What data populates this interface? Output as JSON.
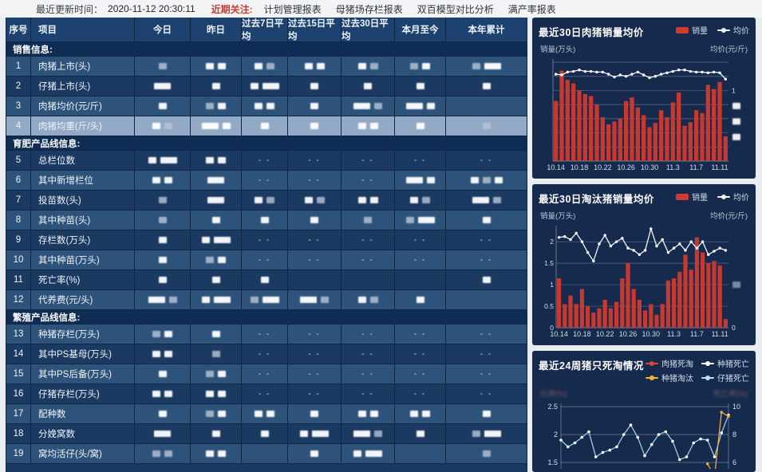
{
  "colors": {
    "bar_red": "#c7382f",
    "legend_red": "#d03a30",
    "line_white": "#eef5fc",
    "piglet_blue": "#9ecbe8",
    "cull_yellow": "#f2a93b",
    "panel_bg": "#152a4d",
    "row_medium": "#2e537b",
    "row_dark": "#1b3a62",
    "row_highlight": "#92aac6"
  },
  "topbar": {
    "update_label": "最近更新时间：",
    "update_time": "2020-11-12 20:30:11",
    "focus_label": "近期关注:",
    "menus": [
      "计划管理报表",
      "母猪场存栏报表",
      "双百模型对比分析",
      "满产率报表"
    ]
  },
  "table": {
    "headers": [
      "序号",
      "项目",
      "今日",
      "昨日",
      "过去7日平均",
      "过去15日平均",
      "过去30日平均",
      "本月至今",
      "本年累计"
    ],
    "redaction_tokens": {
      "w": "small redacted block",
      "g": "grey redacted block",
      "W": "wide redacted block",
      "--": "no data",
      "": "empty"
    },
    "rows": [
      {
        "type": "section",
        "label": "销售信息:"
      },
      {
        "type": "data",
        "no": "1",
        "label": "肉猪上市(头)",
        "tone": "medium",
        "cells": [
          "g",
          "ww",
          "wg",
          "ww",
          "wg",
          "gw",
          "gW"
        ]
      },
      {
        "type": "data",
        "no": "2",
        "label": "仔猪上市(头)",
        "tone": "dark",
        "cells": [
          "W",
          "w",
          "wW",
          "w",
          "w",
          "w",
          "w"
        ]
      },
      {
        "type": "data",
        "no": "3",
        "label": "肉猪均价(元/斤)",
        "tone": "medium",
        "cells": [
          "w",
          "gw",
          "ww",
          "w",
          "Wg",
          "Ww",
          ""
        ]
      },
      {
        "type": "data",
        "no": "4",
        "label": "肉猪均重(斤/头)",
        "tone": "highlight",
        "cells": [
          "wg",
          "Ww",
          "w",
          "w",
          "ww",
          "w",
          "g"
        ]
      },
      {
        "type": "section",
        "label": "育肥产品线信息:"
      },
      {
        "type": "data",
        "no": "5",
        "label": "总栏位数",
        "tone": "dark",
        "cells": [
          "wW",
          "ww",
          "--",
          "--",
          "--",
          "--",
          "--"
        ]
      },
      {
        "type": "data",
        "no": "6",
        "label": "其中新增栏位",
        "tone": "medium",
        "cells": [
          "ww",
          "W",
          "--",
          "--",
          "--",
          "Ww",
          "wgw"
        ]
      },
      {
        "type": "data",
        "no": "7",
        "label": "投苗数(头)",
        "tone": "dark",
        "cells": [
          "g",
          "W",
          "wg",
          "wg",
          "ww",
          "wg",
          "Wg"
        ]
      },
      {
        "type": "data",
        "no": "8",
        "label": "其中种苗(头)",
        "tone": "medium",
        "cells": [
          "g",
          "w",
          "w",
          "w",
          "g",
          "gW",
          "w"
        ]
      },
      {
        "type": "data",
        "no": "9",
        "label": "存栏数(万头)",
        "tone": "dark",
        "cells": [
          "w",
          "wW",
          "--",
          "--",
          "--",
          "--",
          "--"
        ]
      },
      {
        "type": "data",
        "no": "10",
        "label": "其中种苗(万头)",
        "tone": "medium",
        "cells": [
          "w",
          "gw",
          "--",
          "--",
          "--",
          "--",
          "--"
        ]
      },
      {
        "type": "data",
        "no": "11",
        "label": "死亡率(%)",
        "tone": "dark",
        "cells": [
          "w",
          "w",
          "w",
          "",
          "",
          "",
          "w"
        ]
      },
      {
        "type": "data",
        "no": "12",
        "label": "代养费(元/头)",
        "tone": "medium",
        "cells": [
          "Wg",
          "wW",
          "gW",
          "Wg",
          "wg",
          "w",
          ""
        ]
      },
      {
        "type": "section",
        "label": "繁殖产品线信息:"
      },
      {
        "type": "data",
        "no": "13",
        "label": "种猪存栏(万头)",
        "tone": "medium",
        "cells": [
          "gw",
          "w",
          "--",
          "--",
          "--",
          "--",
          "--"
        ]
      },
      {
        "type": "data",
        "no": "14",
        "label": "其中PS基母(万头)",
        "tone": "dark",
        "cells": [
          "ww",
          "g",
          "--",
          "--",
          "--",
          "--",
          "--"
        ]
      },
      {
        "type": "data",
        "no": "15",
        "label": "其中PS后备(万头)",
        "tone": "medium",
        "cells": [
          "w",
          "gw",
          "--",
          "--",
          "--",
          "--",
          "--"
        ]
      },
      {
        "type": "data",
        "no": "16",
        "label": "仔猪存栏(万头)",
        "tone": "dark",
        "cells": [
          "ww",
          "ww",
          "--",
          "--",
          "--",
          "--",
          "--"
        ]
      },
      {
        "type": "data",
        "no": "17",
        "label": "配种数",
        "tone": "medium",
        "cells": [
          "w",
          "gw",
          "ww",
          "w",
          "ww",
          "ww",
          "w"
        ]
      },
      {
        "type": "data",
        "no": "18",
        "label": "分娩窝数",
        "tone": "dark",
        "cells": [
          "W",
          "w",
          "w",
          "wW",
          "Wg",
          "w",
          "gW"
        ]
      },
      {
        "type": "data",
        "no": "19",
        "label": "窝均活仔(头/窝)",
        "tone": "medium",
        "cells": [
          "gg",
          "ww",
          "",
          "w",
          "wW",
          "",
          "g"
        ]
      }
    ]
  },
  "chart_data": [
    {
      "type": "bar",
      "title": "最近30日肉猪销量均价",
      "legend": [
        {
          "name": "销量",
          "kind": "bar",
          "color": "#d03a30"
        },
        {
          "name": "均价",
          "kind": "line",
          "color": "#eef5fc"
        }
      ],
      "left_axis_label": "销量(万头)",
      "right_axis_label": "均价(元/斤)",
      "note": "numeric axis labels redacted/blurred in source; bar and line values are relative estimates",
      "x_tick_labels": [
        "10.14",
        "10.18",
        "10.22",
        "10.26",
        "10.30",
        "11.3",
        "11.7",
        "11.11"
      ],
      "x_tick_every": 4,
      "axis_max": 1.4,
      "grid_step": 0.2,
      "right_visible_ticks": [
        {
          "value": 1.0,
          "label": "1"
        }
      ],
      "right_redacted_at": [
        0.78,
        0.56,
        0.34
      ],
      "values": [
        0.85,
        1.28,
        1.15,
        1.1,
        1.0,
        0.95,
        0.92,
        0.8,
        0.62,
        0.52,
        0.56,
        0.6,
        0.85,
        0.9,
        0.76,
        0.65,
        0.48,
        0.54,
        0.72,
        0.62,
        0.83,
        0.97,
        0.5,
        0.55,
        0.72,
        0.68,
        1.08,
        1.02,
        1.12,
        0.35
      ],
      "line_values": [
        1.23,
        1.22,
        1.26,
        1.27,
        1.29,
        1.27,
        1.27,
        1.26,
        1.26,
        1.23,
        1.19,
        1.22,
        1.2,
        1.23,
        1.26,
        1.22,
        1.18,
        1.2,
        1.23,
        1.25,
        1.27,
        1.29,
        1.29,
        1.27,
        1.26,
        1.26,
        1.25,
        1.26,
        1.25,
        1.16
      ]
    },
    {
      "type": "bar",
      "title": "最近30日淘汰猪销量均价",
      "legend": [
        {
          "name": "销量",
          "kind": "bar",
          "color": "#d03a30"
        },
        {
          "name": "均价",
          "kind": "line",
          "color": "#eef5fc"
        }
      ],
      "left_axis_label": "销量(万头)",
      "right_axis_label": "均价(元/斤)",
      "x_tick_labels": [
        "10.14",
        "10.18",
        "10.22",
        "10.26",
        "10.30",
        "11.3",
        "11.7",
        "11.11"
      ],
      "x_tick_every": 4,
      "axis_max": 2.3,
      "grid_step": 0.5,
      "left_ticks": [
        {
          "value": 0,
          "label": "0"
        },
        {
          "value": 0.5,
          "label": "0.5"
        },
        {
          "value": 1,
          "label": "1"
        },
        {
          "value": 1.5,
          "label": "1.5"
        },
        {
          "value": 2,
          "label": "2"
        }
      ],
      "right_visible_ticks": [
        {
          "value": 0,
          "label": "0"
        }
      ],
      "right_redacted_at": [
        1.0
      ],
      "values": [
        1.15,
        0.55,
        0.75,
        0.55,
        0.9,
        0.5,
        0.35,
        0.45,
        0.65,
        0.45,
        0.6,
        1.15,
        1.5,
        0.9,
        0.65,
        0.4,
        0.55,
        0.3,
        0.55,
        1.1,
        1.15,
        1.3,
        1.7,
        1.35,
        2.1,
        1.75,
        1.5,
        1.55,
        1.45,
        0.2
      ],
      "line_values": [
        2.1,
        2.12,
        2.05,
        2.2,
        2.0,
        1.75,
        1.55,
        1.95,
        2.15,
        1.9,
        2.0,
        2.08,
        1.85,
        1.8,
        1.7,
        1.8,
        2.3,
        1.9,
        2.05,
        1.75,
        1.85,
        1.95,
        1.8,
        2.0,
        1.85,
        2.0,
        1.7,
        1.78,
        1.85,
        1.8
      ]
    },
    {
      "type": "line",
      "title": "最近24周猪只死淘情况",
      "legend": [
        {
          "name": "肉猪死淘",
          "kind": "line",
          "color": "#e0483c"
        },
        {
          "name": "种猪死亡",
          "kind": "line",
          "color": "#ffffff"
        },
        {
          "name": "种猪淘汰",
          "kind": "line",
          "color": "#f2b632"
        },
        {
          "name": "仔猪死亡",
          "kind": "line",
          "color": "#bfe0f8"
        }
      ],
      "left_axis_label": "比率(%)",
      "right_axis_label": "死亡率(%)",
      "axis_labels_redacted": true,
      "left_visible_ticks": [
        "2.5",
        "2",
        "1.5"
      ],
      "right_visible_ticks": [
        "10",
        "8",
        "6"
      ],
      "note": "chart clipped at bottom of viewport; only top part of plot visible",
      "series": [
        {
          "name": "仔猪死亡",
          "color": "#9ecbe8",
          "axis": "left",
          "values": [
            1.9,
            1.78,
            1.85,
            1.95,
            2.05,
            1.6,
            1.68,
            1.72,
            1.78,
            2.0,
            2.17,
            1.95,
            1.62,
            1.82,
            2.0,
            2.05,
            1.88,
            1.55,
            1.6,
            1.85,
            1.92,
            1.9,
            1.6,
            2.03,
            2.35
          ]
        },
        {
          "name": "种猪淘汰",
          "color": "#f2a93b",
          "axis": "right",
          "values": [
            null,
            null,
            null,
            null,
            null,
            null,
            null,
            null,
            null,
            null,
            null,
            null,
            null,
            null,
            null,
            null,
            null,
            null,
            null,
            null,
            null,
            5.9,
            5.0,
            9.6,
            9.3
          ]
        }
      ]
    }
  ]
}
